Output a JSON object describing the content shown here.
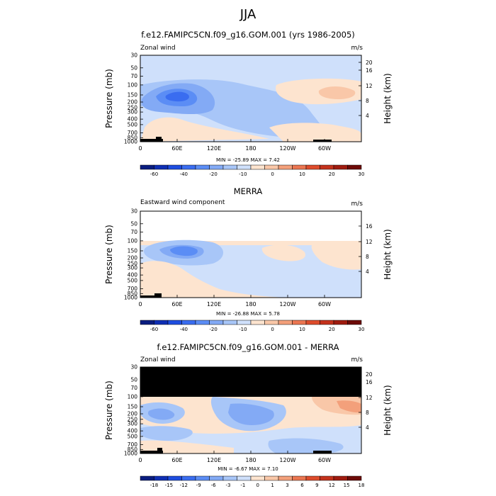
{
  "page_title": "JJA",
  "chart_data": [
    {
      "type": "heatmap",
      "title": "f.e12.FAMIPC5CN.f09_g16.GOM.001 (yrs 1986-2005)",
      "left_label": "Zonal wind",
      "units": "m/s",
      "ylabel": "Pressure (mb)",
      "ylabel_right": "Height (km)",
      "x_ticks": [
        "0",
        "60E",
        "120E",
        "180",
        "120W",
        "60W"
      ],
      "y_ticks": [
        "30",
        "50",
        "70",
        "100",
        "150",
        "200",
        "250",
        "300",
        "400",
        "500",
        "700",
        "850",
        "1000"
      ],
      "height_ticks": [
        "20",
        "16",
        "12",
        "8",
        "4"
      ],
      "min": -25.89,
      "max": 7.42,
      "minmax_text": "MIN = -25.89  MAX =   7.42",
      "colorbar_levels": [
        "-60",
        "-40",
        "-20",
        "-10",
        "0",
        "10",
        "20",
        "30"
      ],
      "colorbar_colors": [
        "#0a1d80",
        "#0f2fb4",
        "#1e4de0",
        "#3a6df0",
        "#5b8df5",
        "#83aaf5",
        "#a8c6f8",
        "#cfe0fb",
        "#fde4cf",
        "#f9c7a8",
        "#f3a07b",
        "#eb7651",
        "#de4c2c",
        "#c4321c",
        "#a01c10",
        "#6e0b08"
      ],
      "regions": [
        {
          "lon": 20,
          "p": 150,
          "value": -25,
          "shade": -5
        },
        {
          "lon": 50,
          "p": 200,
          "value": -15,
          "shade": -4
        },
        {
          "lon": 30,
          "p": 400,
          "value": 5,
          "shade": 1
        },
        {
          "lon": 250,
          "p": 150,
          "value": 7,
          "shade": 2
        },
        {
          "lon": 300,
          "p": 300,
          "value": 3,
          "shade": 1
        }
      ]
    },
    {
      "type": "heatmap",
      "title": "MERRA",
      "left_label": "Eastward wind component",
      "units": "m/s",
      "ylabel": "Pressure (mb)",
      "ylabel_right": "Height (km)",
      "x_ticks": [
        "0",
        "60E",
        "120E",
        "180",
        "120W",
        "60W"
      ],
      "y_ticks": [
        "30",
        "50",
        "70",
        "100",
        "150",
        "200",
        "250",
        "300",
        "400",
        "500",
        "700",
        "850",
        "1000"
      ],
      "height_ticks": [
        "16",
        "12",
        "8",
        "4"
      ],
      "min": -26.88,
      "max": 5.78,
      "minmax_text": "MIN = -26.88  MAX =   5.78",
      "colorbar_levels": [
        "-60",
        "-40",
        "-20",
        "-10",
        "0",
        "10",
        "20",
        "30"
      ],
      "colorbar_colors": [
        "#0a1d80",
        "#0f2fb4",
        "#1e4de0",
        "#3a6df0",
        "#5b8df5",
        "#83aaf5",
        "#a8c6f8",
        "#cfe0fb",
        "#fde4cf",
        "#f9c7a8",
        "#f3a07b",
        "#eb7651",
        "#de4c2c",
        "#c4321c",
        "#a01c10",
        "#6e0b08"
      ]
    },
    {
      "type": "heatmap",
      "title": "f.e12.FAMIPC5CN.f09_g16.GOM.001 - MERRA",
      "left_label": "Zonal wind",
      "units": "m/s",
      "ylabel": "Pressure (mb)",
      "ylabel_right": "Height (km)",
      "x_ticks": [
        "0",
        "60E",
        "120E",
        "180",
        "120W",
        "60W"
      ],
      "y_ticks": [
        "30",
        "50",
        "70",
        "100",
        "150",
        "200",
        "250",
        "300",
        "400",
        "500",
        "700",
        "850",
        "1000"
      ],
      "height_ticks": [
        "20",
        "16",
        "12",
        "8",
        "4"
      ],
      "min": -6.67,
      "max": 7.1,
      "minmax_text": "MIN =  -6.67  MAX =   7.10",
      "colorbar_levels": [
        "-18",
        "-15",
        "-12",
        "-9",
        "-6",
        "-3",
        "-1",
        "0",
        "1",
        "3",
        "6",
        "9",
        "12",
        "15",
        "18"
      ],
      "colorbar_colors": [
        "#0a1d80",
        "#0f2fb4",
        "#1e4de0",
        "#3a6df0",
        "#5b8df5",
        "#83aaf5",
        "#a8c6f8",
        "#cfe0fb",
        "#fde4cf",
        "#f9c7a8",
        "#f3a07b",
        "#eb7651",
        "#de4c2c",
        "#c4321c",
        "#a01c10",
        "#6e0b08"
      ]
    }
  ]
}
